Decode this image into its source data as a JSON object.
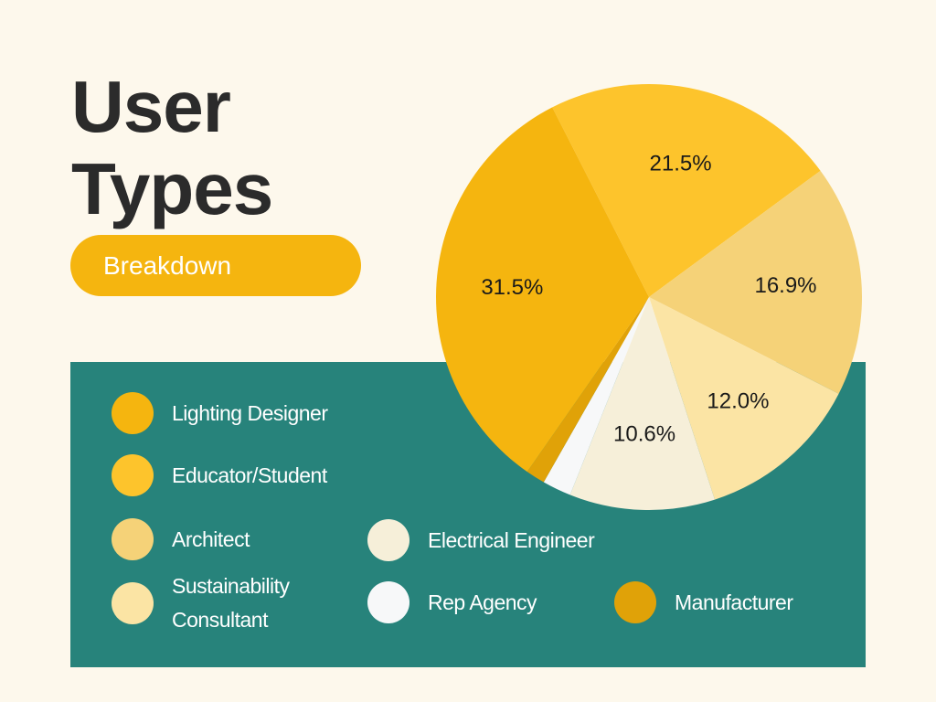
{
  "header": {
    "title_line1": "User",
    "title_line2": "Types",
    "badge": "Breakdown"
  },
  "colors": {
    "background": "#fdf8ec",
    "panel": "#27837b",
    "title": "#2b2b2b",
    "badge": "#f5b50f"
  },
  "legend": [
    {
      "label": "Lighting Designer",
      "color": "#f5b50f"
    },
    {
      "label": "Educator/Student",
      "color": "#fdc42c"
    },
    {
      "label": "Architect",
      "color": "#f5d278"
    },
    {
      "label": "Sustainability Consultant",
      "color": "#fbe4a4"
    },
    {
      "label": "Electrical Engineer",
      "color": "#f6efd9"
    },
    {
      "label": "Rep Agency",
      "color": "#f7f8f9"
    },
    {
      "label": "Manufacturer",
      "color": "#e0a208"
    }
  ],
  "chart_data": {
    "type": "pie",
    "title": "User Types",
    "subtitle": "Breakdown",
    "start_angle_deg": -27,
    "direction": "clockwise",
    "slices": [
      {
        "name": "Educator/Student",
        "value": 21.5,
        "label": "21.5%",
        "color": "#fdc42c"
      },
      {
        "name": "Architect",
        "value": 16.9,
        "label": "16.9%",
        "color": "#f5d278"
      },
      {
        "name": "Sustainability Consultant",
        "value": 12.0,
        "label": "12.0%",
        "color": "#fbe4a4"
      },
      {
        "name": "Electrical Engineer",
        "value": 10.6,
        "label": "10.6%",
        "color": "#f6efd9"
      },
      {
        "name": "Rep Agency",
        "value": 2.1,
        "label": "",
        "color": "#f7f8f9"
      },
      {
        "name": "Manufacturer",
        "value": 1.4,
        "label": "",
        "color": "#e0a208"
      },
      {
        "name": "Lighting Designer",
        "value": 31.5,
        "label": "31.5%",
        "color": "#f5b50f"
      }
    ]
  }
}
